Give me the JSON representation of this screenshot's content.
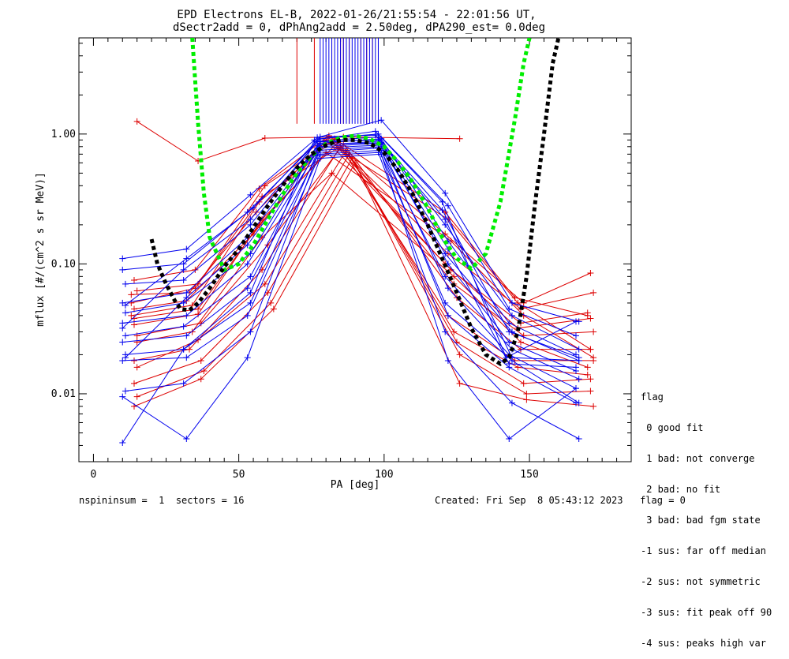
{
  "chart_data": {
    "type": "line",
    "title": "EPD Electrons EL-B, 2022-01-26/21:55:54 - 22:01:56 UT,",
    "subtitle": "dSectr2add = 0, dPhAng2add = 2.50deg, dPA290_est=   0.0deg",
    "xlabel": "PA [deg]",
    "ylabel": "mflux [#/(cm^2 s sr MeV)]",
    "xlim": [
      -5,
      185
    ],
    "ylim": [
      0.003,
      5.5
    ],
    "yscale": "log",
    "xticks": [
      0,
      50,
      100,
      150
    ],
    "yticks": [
      {
        "value": 0.01,
        "label": "0.01"
      },
      {
        "value": 0.1,
        "label": "0.10"
      },
      {
        "value": 1.0,
        "label": "1.00"
      }
    ],
    "colors": {
      "red": "#dd0000",
      "blue": "#0000ee",
      "green": "#00ee00",
      "black": "#000000"
    },
    "series": [
      {
        "color": "red",
        "x": [
          15,
          36,
          59,
          86,
          126
        ],
        "y": [
          1.25,
          0.62,
          0.93,
          0.95,
          0.92
        ]
      },
      {
        "color": "red",
        "x": [
          14,
          35,
          57,
          81,
          121,
          148,
          171
        ],
        "y": [
          0.075,
          0.09,
          0.38,
          0.97,
          0.17,
          0.05,
          0.085
        ]
      },
      {
        "color": "red",
        "x": [
          13,
          33,
          56,
          81,
          122,
          147,
          172
        ],
        "y": [
          0.058,
          0.06,
          0.25,
          0.94,
          0.12,
          0.045,
          0.06
        ]
      },
      {
        "color": "red",
        "x": [
          14,
          32,
          55,
          80,
          123,
          147,
          170
        ],
        "y": [
          0.045,
          0.052,
          0.17,
          0.9,
          0.09,
          0.035,
          0.042
        ]
      },
      {
        "color": "red",
        "x": [
          13,
          34,
          57,
          82,
          121,
          146,
          171
        ],
        "y": [
          0.04,
          0.048,
          0.3,
          0.88,
          0.1,
          0.032,
          0.038
        ]
      },
      {
        "color": "red",
        "x": [
          14,
          36,
          58,
          84,
          124,
          148,
          172
        ],
        "y": [
          0.034,
          0.041,
          0.22,
          0.86,
          0.07,
          0.028,
          0.03
        ]
      },
      {
        "color": "red",
        "x": [
          15,
          37,
          60,
          86,
          125,
          147,
          171
        ],
        "y": [
          0.028,
          0.035,
          0.14,
          0.84,
          0.055,
          0.022,
          0.022
        ]
      },
      {
        "color": "red",
        "x": [
          14,
          33,
          58,
          85,
          122,
          145,
          172
        ],
        "y": [
          0.018,
          0.022,
          0.09,
          0.8,
          0.04,
          0.018,
          0.018
        ]
      },
      {
        "color": "red",
        "x": [
          15,
          36,
          59,
          87,
          124,
          146,
          170
        ],
        "y": [
          0.016,
          0.026,
          0.07,
          0.75,
          0.03,
          0.016,
          0.014
        ]
      },
      {
        "color": "red",
        "x": [
          14,
          37,
          60,
          88,
          125,
          148,
          171
        ],
        "y": [
          0.012,
          0.018,
          0.06,
          0.7,
          0.025,
          0.012,
          0.013
        ]
      },
      {
        "color": "red",
        "x": [
          15,
          38,
          61,
          89,
          126,
          149,
          171
        ],
        "y": [
          0.0095,
          0.015,
          0.05,
          0.65,
          0.02,
          0.01,
          0.0105
        ]
      },
      {
        "color": "red",
        "x": [
          14,
          37,
          62,
          90,
          126,
          149,
          172
        ],
        "y": [
          0.008,
          0.013,
          0.045,
          0.6,
          0.012,
          0.009,
          0.008
        ]
      },
      {
        "color": "red",
        "x": [
          15,
          36,
          59,
          83,
          121,
          145,
          170
        ],
        "y": [
          0.062,
          0.07,
          0.4,
          0.92,
          0.25,
          0.055,
          0.04
        ]
      },
      {
        "color": "red",
        "x": [
          13,
          35,
          58,
          84,
          122,
          146,
          171
        ],
        "y": [
          0.05,
          0.065,
          0.33,
          0.78,
          0.22,
          0.05,
          0.022
        ]
      },
      {
        "color": "red",
        "x": [
          14,
          36,
          57,
          80,
          123,
          148,
          172
        ],
        "y": [
          0.038,
          0.045,
          0.2,
          0.72,
          0.15,
          0.04,
          0.019
        ]
      },
      {
        "color": "red",
        "x": [
          15,
          34,
          58,
          82,
          124,
          147,
          170
        ],
        "y": [
          0.025,
          0.03,
          0.16,
          0.5,
          0.08,
          0.025,
          0.016
        ]
      },
      {
        "color": "blue",
        "x": [
          10,
          32,
          54,
          77,
          99,
          121,
          144,
          167
        ],
        "y": [
          0.11,
          0.13,
          0.34,
          0.94,
          1.28,
          0.35,
          0.05,
          0.036
        ]
      },
      {
        "color": "blue",
        "x": [
          10,
          31,
          53,
          78,
          98,
          122,
          143,
          166
        ],
        "y": [
          0.09,
          0.1,
          0.25,
          0.92,
          1.0,
          0.28,
          0.045,
          0.028
        ]
      },
      {
        "color": "blue",
        "x": [
          11,
          31,
          54,
          77,
          98,
          121,
          144,
          167
        ],
        "y": [
          0.07,
          0.075,
          0.2,
          0.88,
          0.95,
          0.2,
          0.04,
          0.022
        ]
      },
      {
        "color": "blue",
        "x": [
          10,
          32,
          53,
          78,
          99,
          122,
          143,
          166
        ],
        "y": [
          0.05,
          0.06,
          0.16,
          0.85,
          0.92,
          0.15,
          0.035,
          0.02
        ]
      },
      {
        "color": "blue",
        "x": [
          11,
          31,
          54,
          77,
          98,
          121,
          144,
          167
        ],
        "y": [
          0.042,
          0.05,
          0.12,
          0.82,
          0.88,
          0.12,
          0.03,
          0.018
        ]
      },
      {
        "color": "blue",
        "x": [
          10,
          32,
          53,
          78,
          99,
          122,
          143,
          166
        ],
        "y": [
          0.035,
          0.04,
          0.1,
          0.8,
          0.85,
          0.1,
          0.025,
          0.015
        ]
      },
      {
        "color": "blue",
        "x": [
          11,
          31,
          54,
          77,
          98,
          121,
          144,
          167
        ],
        "y": [
          0.028,
          0.033,
          0.08,
          0.78,
          0.82,
          0.08,
          0.022,
          0.013
        ]
      },
      {
        "color": "blue",
        "x": [
          10,
          32,
          53,
          78,
          99,
          122,
          143,
          166
        ],
        "y": [
          0.025,
          0.028,
          0.065,
          0.75,
          0.8,
          0.065,
          0.02,
          0.011
        ]
      },
      {
        "color": "blue",
        "x": [
          11,
          31,
          54,
          77,
          98,
          121,
          144,
          167
        ],
        "y": [
          0.02,
          0.022,
          0.05,
          0.72,
          0.78,
          0.05,
          0.018,
          0.0085
        ]
      },
      {
        "color": "blue",
        "x": [
          10,
          32,
          53,
          78,
          99,
          122,
          143,
          166
        ],
        "y": [
          0.018,
          0.019,
          0.04,
          0.7,
          0.75,
          0.04,
          0.016,
          0.0085
        ]
      },
      {
        "color": "blue",
        "x": [
          11,
          31,
          54,
          77,
          98,
          121,
          144,
          167
        ],
        "y": [
          0.0105,
          0.012,
          0.03,
          0.68,
          0.72,
          0.03,
          0.0085,
          0.0045
        ]
      },
      {
        "color": "blue",
        "x": [
          10,
          32,
          53,
          78,
          99,
          122,
          143,
          166
        ],
        "y": [
          0.0095,
          0.0045,
          0.019,
          0.65,
          0.7,
          0.018,
          0.0045,
          0.011
        ]
      },
      {
        "color": "blue",
        "x": [
          10,
          31,
          54,
          76,
          97,
          120,
          142,
          166
        ],
        "y": [
          0.0042,
          0.022,
          0.06,
          0.9,
          1.05,
          0.3,
          0.019,
          0.036
        ]
      },
      {
        "color": "blue",
        "x": [
          11,
          32,
          55,
          78,
          97,
          120,
          143,
          167
        ],
        "y": [
          0.048,
          0.11,
          0.27,
          0.95,
          0.98,
          0.26,
          0.03,
          0.019
        ]
      },
      {
        "color": "blue",
        "x": [
          10,
          31,
          54,
          77,
          98,
          121,
          144,
          167
        ],
        "y": [
          0.032,
          0.09,
          0.22,
          0.87,
          0.9,
          0.22,
          0.019,
          0.018
        ]
      },
      {
        "color": "blue",
        "x": [
          11,
          32,
          53,
          78,
          99,
          122,
          143,
          166
        ],
        "y": [
          0.019,
          0.055,
          0.14,
          0.83,
          0.86,
          0.13,
          0.017,
          0.016
        ]
      }
    ],
    "fit_curves": [
      {
        "color": "green",
        "x": [
          34,
          36,
          38,
          40,
          45,
          50,
          55,
          60,
          65,
          70,
          75,
          80,
          85,
          90,
          95,
          100,
          105,
          110,
          115,
          120,
          125,
          130,
          135,
          140,
          145,
          148,
          150
        ],
        "y": [
          5.5,
          1.2,
          0.35,
          0.16,
          0.09,
          0.1,
          0.14,
          0.22,
          0.34,
          0.5,
          0.68,
          0.84,
          0.94,
          0.97,
          0.92,
          0.8,
          0.6,
          0.42,
          0.27,
          0.16,
          0.11,
          0.092,
          0.12,
          0.3,
          1.3,
          3.5,
          5.5
        ]
      },
      {
        "color": "black",
        "x": [
          20,
          22,
          25,
          28,
          30,
          33,
          36,
          40,
          45,
          50,
          55,
          60,
          65,
          70,
          75,
          80,
          85,
          90,
          95,
          100,
          105,
          110,
          115,
          120,
          125,
          130,
          135,
          140,
          143,
          146,
          149,
          152,
          155,
          158,
          160
        ],
        "y": [
          0.155,
          0.1,
          0.07,
          0.052,
          0.045,
          0.044,
          0.05,
          0.065,
          0.095,
          0.13,
          0.19,
          0.28,
          0.4,
          0.55,
          0.7,
          0.82,
          0.9,
          0.9,
          0.85,
          0.72,
          0.52,
          0.34,
          0.2,
          0.11,
          0.06,
          0.032,
          0.02,
          0.017,
          0.019,
          0.03,
          0.08,
          0.3,
          1.0,
          3.5,
          5.5
        ]
      }
    ],
    "vertical_segments": {
      "red": {
        "x": [
          70,
          76,
          82,
          85,
          86,
          88,
          90,
          92,
          94,
          96,
          98
        ],
        "y_from": 1.2,
        "y_to": 5.5
      },
      "blue": {
        "x": [
          78,
          79,
          80,
          81,
          82,
          83,
          84,
          85,
          86,
          87,
          88,
          89,
          90,
          91,
          92,
          93,
          94,
          95,
          96,
          97,
          98
        ],
        "y_from": 1.2,
        "y_to": 5.5
      }
    }
  },
  "legend": {
    "header": "flag",
    "items": [
      " 0 good fit",
      " 1 bad: not converge",
      " 2 bad: no fit",
      " 3 bad: bad fgm state",
      "-1 sus: far off median",
      "-2 sus: not symmetric",
      "-3 sus: fit peak off 90",
      "-4 sus: peaks high var"
    ]
  },
  "footer": {
    "left": "nspininsum =  1  sectors = 16",
    "right": "Created: Fri Sep  8 05:43:12 2023   flag = 0"
  }
}
